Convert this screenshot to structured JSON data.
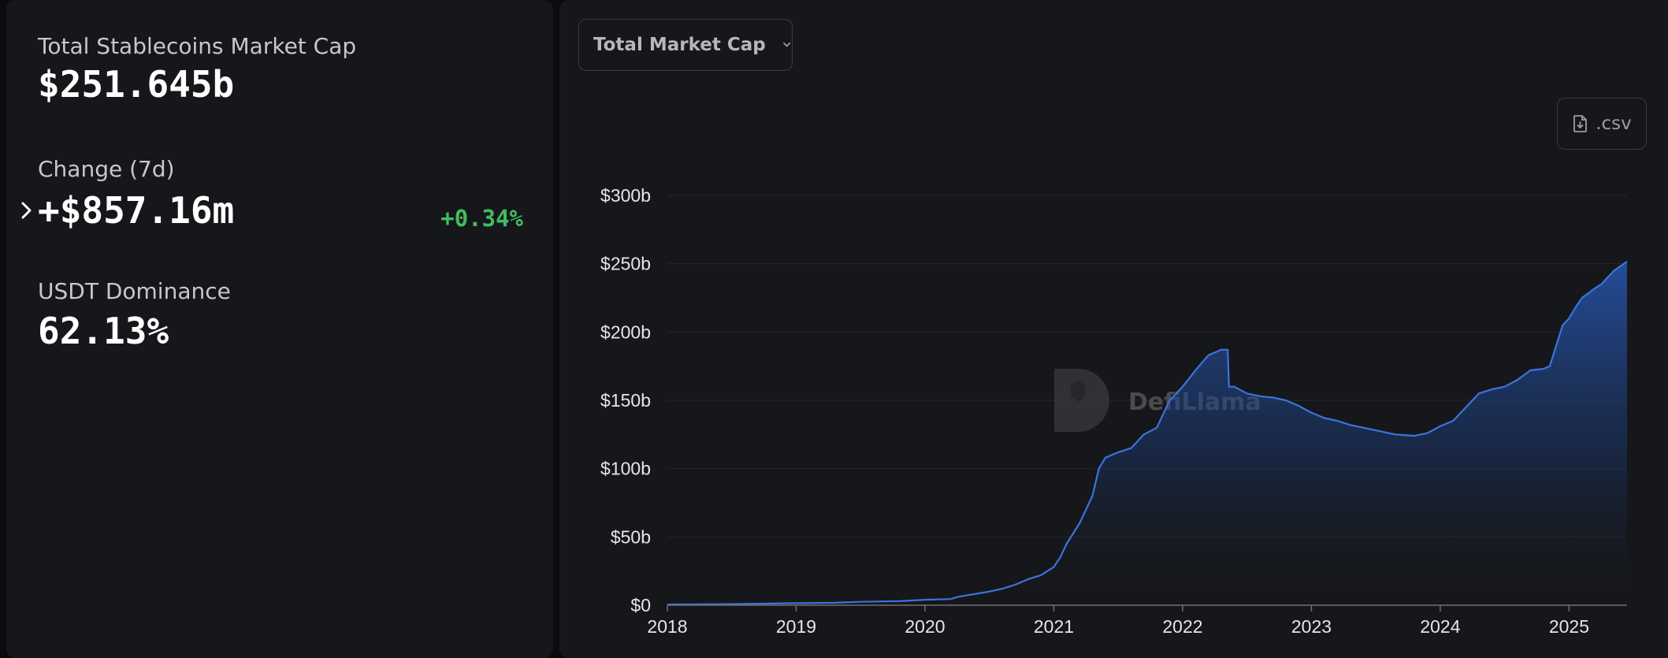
{
  "stats": {
    "total_label": "Total Stablecoins Market Cap",
    "total_value": "$251.645b",
    "change_label": "Change (7d)",
    "change_value": "+$857.16m",
    "change_pct": "+0.34%",
    "dominance_label": "USDT Dominance",
    "dominance_value": "62.13%"
  },
  "controls": {
    "dropdown_label": "Total Market Cap",
    "csv_label": ".csv"
  },
  "watermark": {
    "text": "DefiLlama"
  },
  "colors": {
    "accent_line": "#3b74dc",
    "positive": "#3fbd61",
    "background": "#16171a"
  },
  "chart_data": {
    "type": "area",
    "title": "",
    "xlabel": "",
    "ylabel": "",
    "ylim": [
      0,
      300
    ],
    "y_ticks": [
      {
        "value": 0,
        "label": "$0"
      },
      {
        "value": 50,
        "label": "$50b"
      },
      {
        "value": 100,
        "label": "$100b"
      },
      {
        "value": 150,
        "label": "$150b"
      },
      {
        "value": 200,
        "label": "$200b"
      },
      {
        "value": 250,
        "label": "$250b"
      },
      {
        "value": 300,
        "label": "$300b"
      }
    ],
    "xlim": [
      2018.0,
      2025.45
    ],
    "x_ticks": [
      {
        "value": 2018,
        "label": "2018"
      },
      {
        "value": 2019,
        "label": "2019"
      },
      {
        "value": 2020,
        "label": "2020"
      },
      {
        "value": 2021,
        "label": "2021"
      },
      {
        "value": 2022,
        "label": "2022"
      },
      {
        "value": 2023,
        "label": "2023"
      },
      {
        "value": 2024,
        "label": "2024"
      },
      {
        "value": 2025,
        "label": "2025"
      }
    ],
    "grid": true,
    "series": [
      {
        "unit": "USD billions",
        "points": [
          [
            2018.0,
            0.5
          ],
          [
            2018.5,
            0.8
          ],
          [
            2019.0,
            1.5
          ],
          [
            2019.3,
            1.8
          ],
          [
            2019.5,
            2.5
          ],
          [
            2019.8,
            3.0
          ],
          [
            2020.0,
            4.0
          ],
          [
            2020.2,
            4.5
          ],
          [
            2020.25,
            6.0
          ],
          [
            2020.5,
            10.0
          ],
          [
            2020.6,
            12.0
          ],
          [
            2020.7,
            15.0
          ],
          [
            2020.8,
            19.0
          ],
          [
            2020.9,
            22.0
          ],
          [
            2021.0,
            28.0
          ],
          [
            2021.05,
            35.0
          ],
          [
            2021.1,
            45.0
          ],
          [
            2021.2,
            60.0
          ],
          [
            2021.3,
            80.0
          ],
          [
            2021.35,
            100.0
          ],
          [
            2021.4,
            108.0
          ],
          [
            2021.5,
            112.0
          ],
          [
            2021.6,
            115.0
          ],
          [
            2021.7,
            125.0
          ],
          [
            2021.8,
            130.0
          ],
          [
            2021.85,
            140.0
          ],
          [
            2021.9,
            150.0
          ],
          [
            2022.0,
            160.0
          ],
          [
            2022.1,
            172.0
          ],
          [
            2022.2,
            183.0
          ],
          [
            2022.3,
            187.0
          ],
          [
            2022.35,
            187.0
          ],
          [
            2022.36,
            160.0
          ],
          [
            2022.4,
            160.0
          ],
          [
            2022.5,
            155.0
          ],
          [
            2022.6,
            153.0
          ],
          [
            2022.7,
            152.0
          ],
          [
            2022.8,
            150.0
          ],
          [
            2022.9,
            146.0
          ],
          [
            2023.0,
            141.0
          ],
          [
            2023.1,
            137.0
          ],
          [
            2023.2,
            135.0
          ],
          [
            2023.3,
            132.0
          ],
          [
            2023.4,
            130.0
          ],
          [
            2023.5,
            128.0
          ],
          [
            2023.6,
            126.0
          ],
          [
            2023.65,
            125.0
          ],
          [
            2023.8,
            124.0
          ],
          [
            2023.9,
            126.0
          ],
          [
            2024.0,
            131.0
          ],
          [
            2024.1,
            135.0
          ],
          [
            2024.2,
            145.0
          ],
          [
            2024.3,
            155.0
          ],
          [
            2024.4,
            158.0
          ],
          [
            2024.5,
            160.0
          ],
          [
            2024.6,
            165.0
          ],
          [
            2024.7,
            172.0
          ],
          [
            2024.8,
            173.0
          ],
          [
            2024.85,
            175.0
          ],
          [
            2024.9,
            190.0
          ],
          [
            2024.95,
            205.0
          ],
          [
            2025.0,
            210.0
          ],
          [
            2025.05,
            218.0
          ],
          [
            2025.1,
            225.0
          ],
          [
            2025.2,
            232.0
          ],
          [
            2025.25,
            235.0
          ],
          [
            2025.3,
            240.0
          ],
          [
            2025.35,
            245.0
          ],
          [
            2025.45,
            251.6
          ]
        ]
      }
    ]
  }
}
